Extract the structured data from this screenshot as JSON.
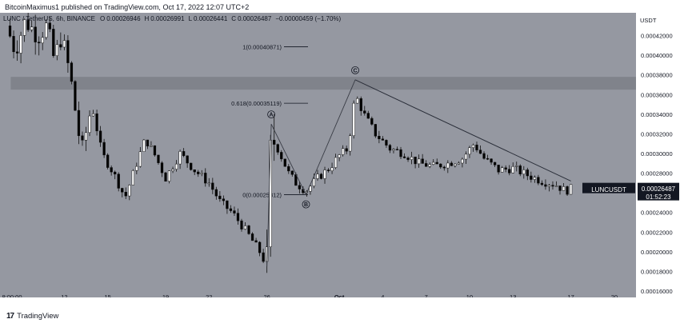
{
  "header": {
    "publish_line": "BitcoinMaximus1 published on TradingView.com, Oct 17, 2022 12:07 UTC+2"
  },
  "legend": {
    "symbol": "LUNC / TetherUS, 6h, BINANCE",
    "open_label": "O",
    "open": "0.00026946",
    "high_label": "H",
    "high": "0.00026991",
    "low_label": "L",
    "low": "0.00026441",
    "close_label": "C",
    "close": "0.00026487",
    "change": "−0.00000459 (−1.70%)"
  },
  "price_tag": {
    "symbol": "LUNCUSDT",
    "price": "0.00026487",
    "countdown": "01:52:23"
  },
  "annotations": {
    "fib_1": "1(0.00040871)",
    "fib_0618": "0.618(0.00035119)",
    "fib_0": "0(0.00025812)",
    "wave_a": "A",
    "wave_b": "B",
    "wave_c": "C"
  },
  "footer": {
    "logo_mark": "17",
    "logo_text": "TradingView"
  },
  "colors": {
    "plot_bg": "#9598a1",
    "axis_bg": "#ffffff",
    "candle_up": "#ffffff",
    "candle_down": "#000000",
    "resistance_zone": "#7c7f87",
    "trendline": "#2a2e39",
    "price_tag_bg": "#131722"
  },
  "chart_data": {
    "type": "candlestick",
    "symbol": "LUNCUSDT",
    "y_unit": "USDT",
    "ylim": [
      0.00016,
      0.00044
    ],
    "y_ticks": [
      "0.00042000",
      "0.00040000",
      "0.00038000",
      "0.00036000",
      "0.00034000",
      "0.00032000",
      "0.00030000",
      "0.00028000",
      "0.00026000",
      "0.00024000",
      "0.00022000",
      "0.00020000",
      "0.00018000",
      "0.00016000"
    ],
    "x_tick_labels": [
      "8:00:00",
      "12",
      "15",
      "19",
      "22",
      "26",
      "Oct",
      "4",
      "7",
      "10",
      "13",
      "17",
      "20"
    ],
    "x_tick_days": [
      8,
      12,
      15,
      19,
      22,
      26,
      31,
      34,
      37,
      40,
      43,
      47,
      50
    ],
    "resistance_zone": [
      0.000365,
      0.000378
    ],
    "fib_levels": [
      {
        "label": "1(0.00040871)",
        "value": 0.00040871
      },
      {
        "label": "0.618(0.00035119)",
        "value": 0.00035119
      },
      {
        "label": "0(0.00025812)",
        "value": 0.00025812
      }
    ],
    "wave_points": [
      {
        "label": "A",
        "day": 26.3,
        "price": 0.00033
      },
      {
        "label": "B",
        "day": 28.7,
        "price": 0.000258
      },
      {
        "label": "C",
        "day": 32.1,
        "price": 0.000375
      }
    ],
    "trendline": [
      {
        "day": 32.1,
        "price": 0.000375
      },
      {
        "day": 47.0,
        "price": 0.000272
      }
    ],
    "current_price": 0.00026487,
    "anchors": [
      {
        "day": 8.0,
        "price": 0.00043
      },
      {
        "day": 8.6,
        "price": 0.000405
      },
      {
        "day": 9.3,
        "price": 0.000435
      },
      {
        "day": 10.2,
        "price": 0.00042
      },
      {
        "day": 10.8,
        "price": 0.00043
      },
      {
        "day": 11.3,
        "price": 0.000395
      },
      {
        "day": 11.8,
        "price": 0.00042
      },
      {
        "day": 12.4,
        "price": 0.00038
      },
      {
        "day": 13.2,
        "price": 0.0003
      },
      {
        "day": 13.9,
        "price": 0.00035
      },
      {
        "day": 14.6,
        "price": 0.0003
      },
      {
        "day": 15.4,
        "price": 0.00028
      },
      {
        "day": 16.2,
        "price": 0.000255
      },
      {
        "day": 17.0,
        "price": 0.00029
      },
      {
        "day": 17.6,
        "price": 0.000315
      },
      {
        "day": 18.2,
        "price": 0.0003
      },
      {
        "day": 19.0,
        "price": 0.000275
      },
      {
        "day": 20.0,
        "price": 0.0003
      },
      {
        "day": 21.0,
        "price": 0.000283
      },
      {
        "day": 22.0,
        "price": 0.00027
      },
      {
        "day": 22.8,
        "price": 0.00025
      },
      {
        "day": 23.6,
        "price": 0.00024
      },
      {
        "day": 24.6,
        "price": 0.00022
      },
      {
        "day": 25.5,
        "price": 0.0002
      },
      {
        "day": 26.0,
        "price": 0.000185
      },
      {
        "day": 26.3,
        "price": 0.00032
      },
      {
        "day": 26.9,
        "price": 0.0003
      },
      {
        "day": 27.5,
        "price": 0.00028
      },
      {
        "day": 28.0,
        "price": 0.00027
      },
      {
        "day": 28.7,
        "price": 0.000262
      },
      {
        "day": 29.5,
        "price": 0.000275
      },
      {
        "day": 30.3,
        "price": 0.000285
      },
      {
        "day": 31.0,
        "price": 0.000298
      },
      {
        "day": 31.6,
        "price": 0.000305
      },
      {
        "day": 32.1,
        "price": 0.00036
      },
      {
        "day": 32.7,
        "price": 0.00034
      },
      {
        "day": 33.5,
        "price": 0.00032
      },
      {
        "day": 34.5,
        "price": 0.000305
      },
      {
        "day": 35.5,
        "price": 0.0003
      },
      {
        "day": 36.5,
        "price": 0.00029
      },
      {
        "day": 37.5,
        "price": 0.000287
      },
      {
        "day": 38.5,
        "price": 0.00029
      },
      {
        "day": 39.5,
        "price": 0.000295
      },
      {
        "day": 40.3,
        "price": 0.00031
      },
      {
        "day": 41.0,
        "price": 0.000295
      },
      {
        "day": 42.0,
        "price": 0.000283
      },
      {
        "day": 43.0,
        "price": 0.000285
      },
      {
        "day": 44.0,
        "price": 0.000278
      },
      {
        "day": 45.0,
        "price": 0.000272
      },
      {
        "day": 46.0,
        "price": 0.000268
      },
      {
        "day": 46.6,
        "price": 0.000262
      },
      {
        "day": 47.2,
        "price": 0.000265
      }
    ]
  }
}
